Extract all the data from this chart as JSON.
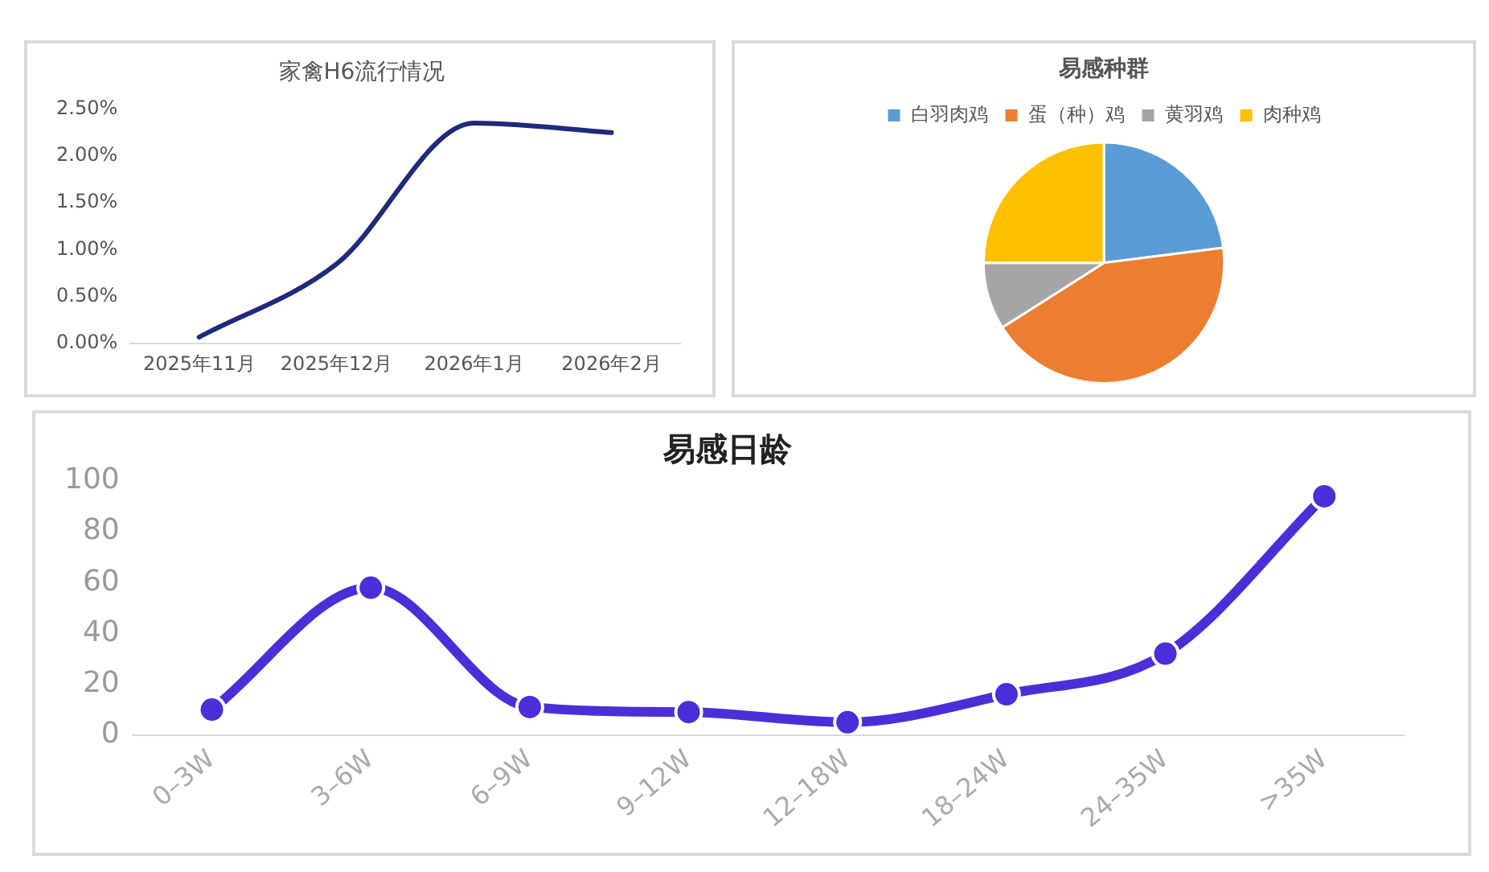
{
  "chart_data": [
    {
      "type": "line",
      "title": "家禽H6流行情况",
      "categories": [
        "2025年11月",
        "2025年12月",
        "2026年1月",
        "2026年2月"
      ],
      "values": [
        0.07,
        0.85,
        2.35,
        2.25
      ],
      "color": "#1f2a7a",
      "ylim": [
        0,
        2.5
      ],
      "yticks": [
        {
          "value": 0,
          "label": "0.00%"
        },
        {
          "value": 0.5,
          "label": "0.50%"
        },
        {
          "value": 1,
          "label": "1.00%"
        },
        {
          "value": 1.5,
          "label": "1.50%"
        },
        {
          "value": 2,
          "label": "2.00%"
        },
        {
          "value": 2.5,
          "label": "2.50%"
        }
      ],
      "grid": false,
      "legend": false,
      "marker": "none"
    },
    {
      "type": "pie",
      "title": "易感种群",
      "categories": [
        "白羽肉鸡",
        "蛋（种）鸡",
        "黄羽鸡",
        "肉种鸡"
      ],
      "values": [
        23,
        43,
        9,
        25
      ],
      "colors": [
        "#5b9bd5",
        "#ed7d31",
        "#a5a5a5",
        "#ffc000"
      ],
      "legend": "top"
    },
    {
      "type": "line",
      "title": "易感日龄",
      "categories": [
        "0–3W",
        "3–6W",
        "6–9W",
        "9–12W",
        "12–18W",
        "18–24W",
        "24–35W",
        ">35W"
      ],
      "values": [
        10,
        58,
        11,
        9,
        5,
        16,
        32,
        94
      ],
      "color": "#4a2fd8",
      "ylim": [
        0,
        100
      ],
      "yticks": [
        0,
        20,
        40,
        60,
        80,
        100
      ],
      "grid": false,
      "legend": false,
      "marker": "circle"
    }
  ]
}
